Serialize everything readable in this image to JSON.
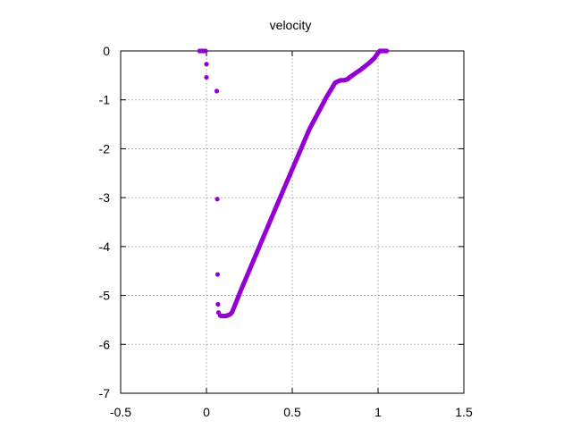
{
  "chart_data": {
    "type": "scatter",
    "title": "velocity",
    "xlabel": "",
    "ylabel": "",
    "xlim": [
      -0.5,
      1.5
    ],
    "ylim": [
      -7,
      0
    ],
    "xticks": [
      "-0.5",
      "0",
      "0.5",
      "1",
      "1.5"
    ],
    "yticks": [
      "0",
      "-1",
      "-2",
      "-3",
      "-4",
      "-5",
      "-6",
      "-7"
    ],
    "grid": true,
    "marker_color": "#9400d3",
    "series": [
      {
        "values": [
          [
            -0.04,
            0.0
          ],
          [
            -0.03,
            0.0
          ],
          [
            -0.02,
            0.0
          ],
          [
            -0.01,
            0.0
          ],
          [
            -0.005,
            0.0
          ],
          [
            0.0,
            -0.27
          ],
          [
            0.0,
            -0.54
          ],
          [
            0.06,
            -0.82
          ],
          [
            0.063,
            -3.03
          ],
          [
            0.065,
            -4.57
          ],
          [
            0.067,
            -5.18
          ],
          [
            0.07,
            -5.35
          ],
          [
            0.08,
            -5.41
          ],
          [
            0.09,
            -5.42
          ],
          [
            0.1,
            -5.42
          ],
          [
            0.11,
            -5.42
          ],
          [
            0.12,
            -5.41
          ],
          [
            0.13,
            -5.4
          ],
          [
            0.14,
            -5.38
          ],
          [
            0.15,
            -5.34
          ],
          [
            0.2,
            -4.9
          ],
          [
            0.3,
            -4.07
          ],
          [
            0.4,
            -3.24
          ],
          [
            0.5,
            -2.42
          ],
          [
            0.6,
            -1.6
          ],
          [
            0.7,
            -0.94
          ],
          [
            0.75,
            -0.65
          ],
          [
            0.78,
            -0.6
          ],
          [
            0.8,
            -0.6
          ],
          [
            0.82,
            -0.58
          ],
          [
            0.85,
            -0.5
          ],
          [
            0.9,
            -0.38
          ],
          [
            0.95,
            -0.24
          ],
          [
            0.98,
            -0.14
          ],
          [
            1.0,
            -0.04
          ],
          [
            1.01,
            0.0
          ],
          [
            1.02,
            0.0
          ],
          [
            1.03,
            0.0
          ],
          [
            1.04,
            0.0
          ],
          [
            1.05,
            0.0
          ]
        ]
      }
    ]
  }
}
